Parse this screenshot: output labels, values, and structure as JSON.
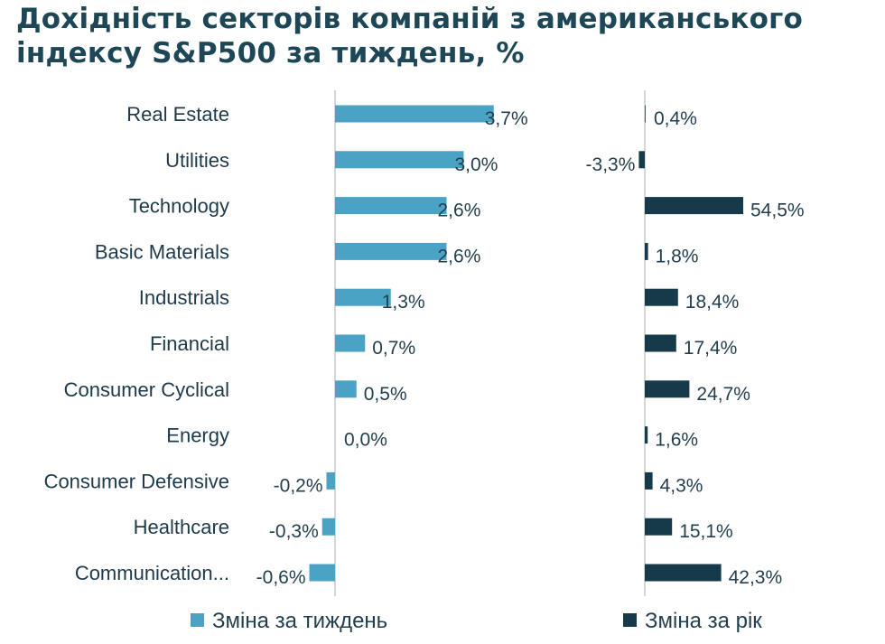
{
  "chart_data": {
    "type": "bar",
    "orientation": "horizontal",
    "title": "Дохідність секторів компаній з американського індексу S&P500 за тиждень, %",
    "categories": [
      "Real Estate",
      "Utilities",
      "Technology",
      "Basic Materials",
      "Industrials",
      "Financial",
      "Consumer Cyclical",
      "Energy",
      "Consumer Defensive",
      "Healthcare",
      "Communication..."
    ],
    "series": [
      {
        "name": "Зміна за тиждень",
        "color": "#4aa3c4",
        "values": [
          3.7,
          3.0,
          2.6,
          2.6,
          1.3,
          0.7,
          0.5,
          0.0,
          -0.2,
          -0.3,
          -0.6
        ],
        "labels": [
          "3,7%",
          "3,0%",
          "2,6%",
          "2,6%",
          "1,3%",
          "0,7%",
          "0,5%",
          "0,0%",
          "-0,2%",
          "-0,3%",
          "-0,6%"
        ]
      },
      {
        "name": "Зміна за рік",
        "color": "#163a4a",
        "values": [
          0.4,
          -3.3,
          54.5,
          1.8,
          18.4,
          17.4,
          24.7,
          1.6,
          4.3,
          15.1,
          42.3
        ],
        "labels": [
          "0,4%",
          "-3,3%",
          "54,5%",
          "1,8%",
          "18,4%",
          "17,4%",
          "24,7%",
          "1,6%",
          "4,3%",
          "15,1%",
          "42,3%"
        ]
      }
    ],
    "legend": "bottom",
    "grid": false
  }
}
